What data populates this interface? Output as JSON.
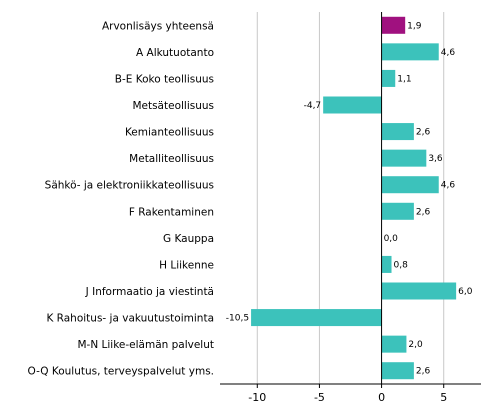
{
  "chart_data": {
    "type": "bar",
    "orientation": "horizontal",
    "title": "",
    "xlabel": "",
    "ylabel": "",
    "categories": [
      "Arvonlisäys yhteensä",
      "A Alkutuotanto",
      "B-E Koko teollisuus",
      "Metsäteollisuus",
      "Kemianteollisuus",
      "Metalliteollisuus",
      "Sähkö- ja elektroniikkateollisuus",
      "F Rakentaminen",
      "G Kauppa",
      "H Liikenne",
      "J Informaatio ja viestintä",
      "K Rahoitus- ja vakuutustoiminta",
      "M-N Liike-elämän palvelut",
      "O-Q Koulutus, terveyspalvelut yms."
    ],
    "values": [
      1.9,
      4.6,
      1.1,
      -4.7,
      2.6,
      3.6,
      4.6,
      2.6,
      0.0,
      0.8,
      6.0,
      -10.5,
      2.0,
      2.6
    ],
    "value_labels": [
      "1,9",
      "4,6",
      "1,1",
      "-4,7",
      "2,6",
      "3,6",
      "4,6",
      "2,6",
      "0,0",
      "0,8",
      "6,0",
      "-10,5",
      "2,0",
      "2,6"
    ],
    "bar_colors": [
      "#a0117f",
      "#3cc2bb",
      "#3cc2bb",
      "#3cc2bb",
      "#3cc2bb",
      "#3cc2bb",
      "#3cc2bb",
      "#3cc2bb",
      "#3cc2bb",
      "#3cc2bb",
      "#3cc2bb",
      "#3cc2bb",
      "#3cc2bb",
      "#3cc2bb"
    ],
    "xlim": [
      -13,
      8
    ],
    "xticks": [
      -10,
      -5,
      0,
      5
    ],
    "xtick_labels": [
      "-10",
      "-5",
      "0",
      "5"
    ],
    "grid": "vertical",
    "grid_color": "#c8c8c8",
    "axis_color": "#000000"
  }
}
